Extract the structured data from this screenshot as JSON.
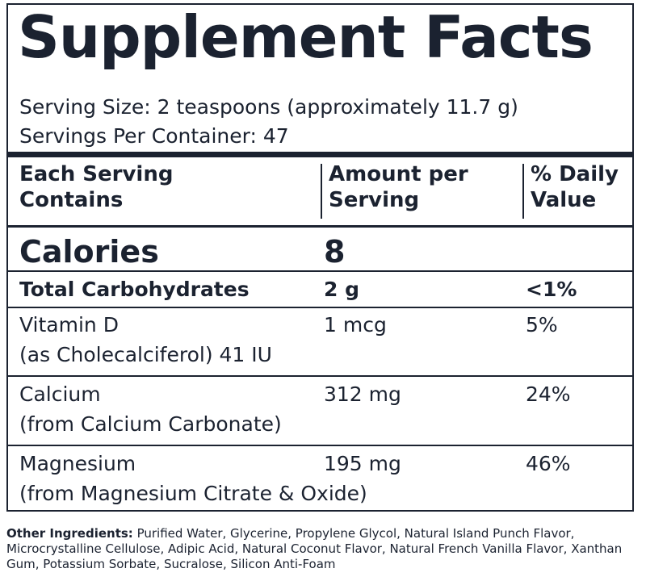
{
  "label": {
    "title": "Supplement Facts",
    "serving_size": "Serving Size: 2 teaspoons (approximately 11.7 g)",
    "servings_per_container": "Servings Per Container: 47"
  },
  "columns": {
    "nutrient_line1": "Each Serving",
    "nutrient_line2": "Contains",
    "amount_line1": "Amount per",
    "amount_line2": "Serving",
    "dv_line1": "% Daily",
    "dv_line2": "Value"
  },
  "calories": {
    "label": "Calories",
    "amount": "8"
  },
  "carbs": {
    "label": "Total Carbohydrates",
    "amount": "2 g",
    "dv": "<1%"
  },
  "rows": [
    {
      "name": "Vitamin D",
      "source": "(as Cholecalciferol) 41 IU",
      "amount": "1 mcg",
      "dv": "5%"
    },
    {
      "name": "Calcium",
      "source": "(from Calcium Carbonate)",
      "amount": "312 mg",
      "dv": "24%"
    },
    {
      "name": "Magnesium",
      "source": "(from Magnesium Citrate & Oxide)",
      "amount": "195 mg",
      "dv": "46%"
    }
  ],
  "other_ingredients": {
    "label": "Other Ingredients:",
    "text": " Purified Water, Glycerine, Propylene Glycol, Natural Island Punch Flavor, Microcrystalline Cellulose, Adipic Acid, Natural Coconut Flavor, Natural French Vanilla Flavor, Xanthan Gum, Potassium Sorbate, Sucralose, Silicon Anti-Foam"
  }
}
